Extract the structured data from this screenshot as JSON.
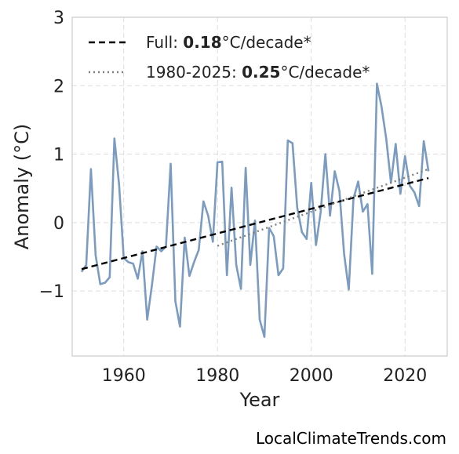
{
  "chart_data": {
    "type": "line",
    "xlabel": "Year",
    "ylabel": "Anomaly (°C)",
    "xlim": [
      1949,
      2029
    ],
    "ylim": [
      -1.95,
      3.0
    ],
    "x_ticks": [
      1960,
      1980,
      2000,
      2020
    ],
    "y_ticks": [
      -1,
      0,
      1,
      2,
      3
    ],
    "y_tick_labels": [
      "−1",
      "0",
      "1",
      "2",
      "3"
    ],
    "grid": true,
    "legend_position": "top-left",
    "series": [
      {
        "color": "#7b9cc0",
        "style": "solid",
        "x": [
          1951,
          1952,
          1953,
          1954,
          1955,
          1956,
          1957,
          1958,
          1959,
          1960,
          1961,
          1962,
          1963,
          1964,
          1965,
          1966,
          1967,
          1968,
          1969,
          1970,
          1971,
          1972,
          1973,
          1974,
          1975,
          1976,
          1977,
          1978,
          1979,
          1980,
          1981,
          1982,
          1983,
          1984,
          1985,
          1986,
          1987,
          1988,
          1989,
          1990,
          1991,
          1992,
          1993,
          1994,
          1995,
          1996,
          1997,
          1998,
          1999,
          2000,
          2001,
          2002,
          2003,
          2004,
          2005,
          2006,
          2007,
          2008,
          2009,
          2010,
          2011,
          2012,
          2013,
          2014,
          2015,
          2016,
          2017,
          2018,
          2019,
          2020,
          2021,
          2022,
          2023,
          2024,
          2025
        ],
        "y": [
          -0.72,
          -0.62,
          0.78,
          -0.48,
          -0.9,
          -0.88,
          -0.8,
          1.23,
          0.55,
          -0.52,
          -0.58,
          -0.6,
          -0.82,
          -0.42,
          -1.42,
          -0.92,
          -0.35,
          -0.42,
          -0.35,
          0.86,
          -1.15,
          -1.52,
          -0.22,
          -0.78,
          -0.58,
          -0.4,
          0.31,
          0.1,
          -0.28,
          0.88,
          0.89,
          -0.77,
          0.51,
          -0.62,
          -0.97,
          0.8,
          -0.62,
          0.03,
          -1.42,
          -1.67,
          -0.08,
          -0.2,
          -0.77,
          -0.67,
          1.2,
          1.16,
          0.22,
          -0.14,
          -0.24,
          0.58,
          -0.33,
          0.15,
          1.0,
          0.1,
          0.75,
          0.46,
          -0.46,
          -0.98,
          0.35,
          0.6,
          0.16,
          0.27,
          -0.75,
          2.03,
          1.69,
          1.22,
          0.58,
          1.15,
          0.42,
          0.97,
          0.54,
          0.44,
          0.24,
          1.19,
          0.75
        ]
      },
      {
        "name": "Full",
        "color": "#000000",
        "style": "dashed",
        "x": [
          1951,
          2025
        ],
        "y": [
          -0.68,
          0.65
        ]
      },
      {
        "name": "1980-2025",
        "color": "#808080",
        "style": "dotted",
        "x": [
          1980,
          2025
        ],
        "y": [
          -0.34,
          0.78
        ]
      }
    ],
    "legend": [
      {
        "prefix": "Full: ",
        "value": "0.18",
        "suffix": "°C/decade*",
        "style": "dashed",
        "color": "#000000"
      },
      {
        "prefix": "1980-2025: ",
        "value": "0.25",
        "suffix": "°C/decade*",
        "style": "dotted",
        "color": "#808080"
      }
    ]
  },
  "watermark": "LocalClimateTrends.com"
}
